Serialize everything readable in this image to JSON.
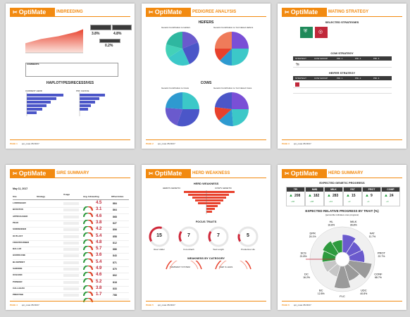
{
  "brand": {
    "name": "OptiMate"
  },
  "pages": [
    {
      "title": "INBREEDING",
      "footer_page": "PAGE 1",
      "footer_text": "opt_mate  05/18/17",
      "stats": [
        {
          "label": "INBREEDING",
          "value": "3.8%"
        },
        {
          "label": "",
          "value": "4.8%"
        },
        {
          "label": "",
          "value": "0.2%"
        }
      ],
      "comments_label": "COMMENTS",
      "haplo_title": "HAPLOTYPES/RECESSIVES",
      "haplo_left": "CURRENT HERD",
      "haplo_right": "PDF CHOICE"
    },
    {
      "title": "PEDIGREE ANALYSIS",
      "footer_page": "PAGE 2",
      "footer_text": "opt_mate  05/18/17",
      "heifers_title": "HEIFERS",
      "cows_title": "COWS",
      "pie_labels": [
        "Genetic Contribution to Heifers",
        "Genetic Contribution to Yet Calved Heifers",
        "Genetic Contribution to Cows",
        "Genetic Contribution to Yet Calved Cows"
      ]
    },
    {
      "title": "MATING STRATEGY",
      "footer_page": "PAGE 3",
      "footer_text": "opt_mate  05/18/17",
      "selected_title": "SELECTED STRATEGIES",
      "cow_title": "COW STRATEGY",
      "heifer_title": "HEIFER STRATEGY",
      "cols": [
        "STRATEGY",
        "COW GROUP",
        "PRI. 1",
        "PRI. 2",
        "PRI. 3"
      ]
    },
    {
      "title": "SIRE SUMMARY",
      "footer_page": "PAGE 4",
      "footer_text": "opt_mate  05/18/17",
      "date": "May 11, 2017",
      "cols": [
        "Sire",
        "Strategy",
        "Usage",
        "Avg. Inbreeding",
        "Offset Index"
      ],
      "sires": [
        {
          "name": "LUDWIGGER",
          "inb": "4.5",
          "idx": "884"
        },
        {
          "name": "BOSSTON",
          "inb": "3.1",
          "idx": "864"
        },
        {
          "name": "APPROACHED",
          "inb": "4.6",
          "idx": "868"
        },
        {
          "name": "PEAK",
          "inb": "3.8",
          "idx": "827"
        },
        {
          "name": "SURRENDER",
          "inb": "4.2",
          "idx": "806"
        },
        {
          "name": "OUTLAST",
          "inb": "5.4",
          "idx": "858"
        },
        {
          "name": "FRONTRUNNER",
          "inb": "4.8",
          "idx": "812"
        },
        {
          "name": "BALLAD",
          "inb": "5.7",
          "idx": "886"
        },
        {
          "name": "HURRICANE",
          "inb": "3.6",
          "idx": "843"
        },
        {
          "name": "BLUEPRINT",
          "inb": "5.4",
          "idx": "871"
        },
        {
          "name": "SARDINE",
          "inb": "4.9",
          "idx": "870"
        },
        {
          "name": "OCEANIC",
          "inb": "4.6",
          "idx": "802"
        },
        {
          "name": "PIONEER",
          "inb": "5.2",
          "idx": "818"
        },
        {
          "name": "CALLAHAN",
          "inb": "3.8",
          "idx": "833"
        },
        {
          "name": "PRESTIGE",
          "inb": "1.7",
          "idx": "788"
        }
      ]
    },
    {
      "title": "HERD WEAKNESS",
      "footer_page": "PAGE 5",
      "footer_text": "opt_mate  05/18/17",
      "weakness_title": "HERD WEAKNESS",
      "left_label": "HERD'S GENETIC",
      "right_label": "COW'S GENETIC",
      "focus_title": "FOCUS TRAITS",
      "focus": [
        {
          "value": "15",
          "pct": 0.15,
          "label": "Rear Udder"
        },
        {
          "value": "7",
          "pct": 0.07,
          "label": "Fore Attach"
        },
        {
          "value": "7",
          "pct": 0.07,
          "label": "Teat Length"
        },
        {
          "value": "5",
          "pct": 0.05,
          "label": "Productive Life"
        }
      ],
      "category_title": "WEAKNESS BY CATEGORY",
      "mammary_label": "MAMMARY SYSTEM",
      "feet_label": "FEET & LEGS"
    },
    {
      "title": "HERD SUMMARY",
      "footer_page": "PAGE 6",
      "footer_text": "opt_mate  05/18/17",
      "egp_title": "EXPECTED GENETIC PROGRESS",
      "traits": [
        {
          "name": "TPI",
          "value": "208",
          "change": "+32"
        },
        {
          "name": "NM$",
          "value": "182",
          "change": "+18"
        },
        {
          "name": "MILK",
          "value": "283",
          "change": "+41"
        },
        {
          "name": "FAT",
          "value": "15",
          "change": "+2"
        },
        {
          "name": "PROT",
          "value": "9",
          "change": "+1"
        },
        {
          "name": "COMP",
          "value": "24",
          "change": "+3"
        }
      ],
      "radial_title": "EXPECTED RELATIVE PROGRESS BY TRAIT (%)",
      "radial_sub": "(percentile indicates ones progress)",
      "radial": [
        {
          "label": "MILK",
          "pct": "36.8%",
          "value": 0.7
        },
        {
          "label": "FAT",
          "pct": "11.7%",
          "value": 0.55
        },
        {
          "label": "PROT",
          "pct": "22.7%",
          "value": 0.6
        },
        {
          "label": "CONF",
          "pct": "68.7%",
          "value": 0.9
        },
        {
          "label": "UDC",
          "pct": "40.8%",
          "value": 0.62
        },
        {
          "label": "FLC",
          "pct": "69.1%",
          "value": 0.88
        },
        {
          "label": "BC",
          "pct": "12.8%",
          "value": 0.45
        },
        {
          "label": "DC",
          "pct": "16.2%",
          "value": 0.5
        },
        {
          "label": "SCS",
          "pct": "21.8%",
          "value": 0.52
        },
        {
          "label": "DPR",
          "pct": "24.1%",
          "value": 0.58
        },
        {
          "label": "HL",
          "pct": "16.8%",
          "value": 0.48
        }
      ]
    }
  ]
}
